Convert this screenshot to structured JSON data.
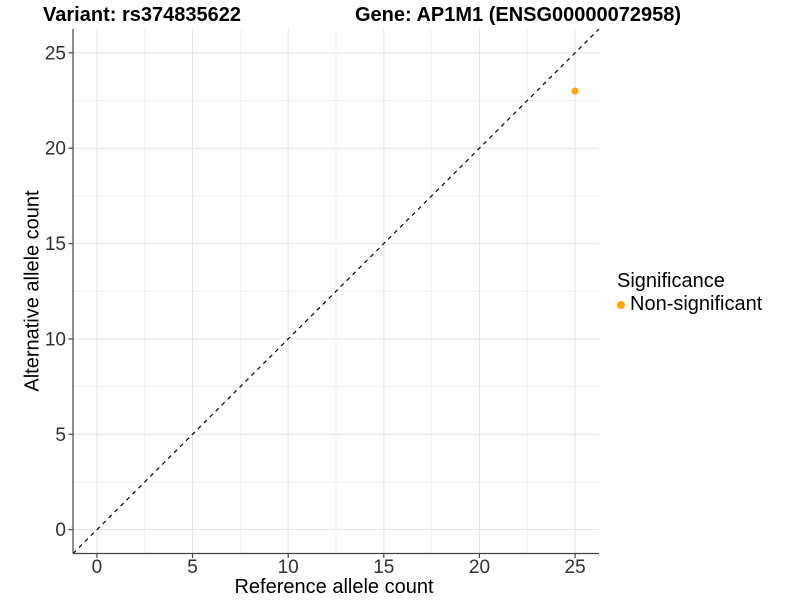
{
  "header": {
    "variant_title": "Variant: rs374835622",
    "gene_title": "Gene: AP1M1 (ENSG00000072958)"
  },
  "chart_data": {
    "type": "scatter",
    "title": "Variant: rs374835622 / Gene: AP1M1 (ENSG00000072958)",
    "xlabel": "Reference allele count",
    "ylabel": "Alternative allele count",
    "xlim": [
      -1.25,
      26.25
    ],
    "ylim": [
      -1.25,
      26.25
    ],
    "x_ticks": [
      0,
      5,
      10,
      15,
      20,
      25
    ],
    "y_ticks": [
      0,
      5,
      10,
      15,
      20,
      25
    ],
    "grid": {
      "major_color": "#e4e4e4",
      "minor_color": "#f1f1f1",
      "minor_rule": "midpoints between major ticks"
    },
    "axis_color": "#434343",
    "tick_label_color": "#303030",
    "identity_line": {
      "description": "y = x reference line",
      "style": "dashed",
      "color": "#000000",
      "from": [
        -1.25,
        -1.25
      ],
      "to": [
        26.25,
        26.25
      ]
    },
    "series": [
      {
        "name": "Non-significant",
        "color": "#FFA500",
        "marker": "circle",
        "points": [
          {
            "x": 25,
            "y": 23
          }
        ]
      }
    ],
    "legend": {
      "title": "Significance",
      "position": "right",
      "items": [
        {
          "label": "Non-significant",
          "color": "#FFA500"
        }
      ]
    }
  }
}
